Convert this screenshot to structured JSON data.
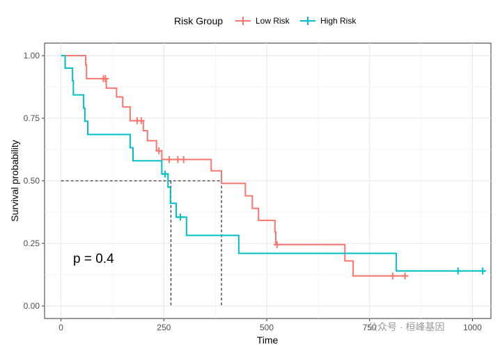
{
  "chart_data": {
    "type": "line",
    "subtype": "kaplan-meier survival curve",
    "xlabel": "Time",
    "ylabel": "Survival probability",
    "xlim": [
      -40,
      1045
    ],
    "ylim": [
      -0.05,
      1.05
    ],
    "x_ticks": [
      0,
      250,
      500,
      750,
      1000
    ],
    "x_tick_labels": [
      "0",
      "250",
      "500",
      "750",
      "1000"
    ],
    "y_ticks": [
      0,
      0.25,
      0.5,
      0.75,
      1.0
    ],
    "y_tick_labels": [
      "0.00",
      "0.25",
      "0.50",
      "0.75",
      "1.00"
    ],
    "grid": true,
    "legend": {
      "title": "Risk Group",
      "position": "top",
      "entries": [
        {
          "label": "Low Risk",
          "color": "#F8766D"
        },
        {
          "label": "High Risk",
          "color": "#00BFC4"
        }
      ]
    },
    "annotation": "p = 0.4",
    "median_survival": {
      "y": 0.5,
      "High Risk": 267,
      "Low Risk": 390
    },
    "series": [
      {
        "name": "Low Risk",
        "color": "#F8766D",
        "steps": [
          [
            0,
            1.0
          ],
          [
            60,
            0.963
          ],
          [
            62,
            0.908
          ],
          [
            110,
            0.87
          ],
          [
            135,
            0.835
          ],
          [
            150,
            0.795
          ],
          [
            168,
            0.74
          ],
          [
            200,
            0.7
          ],
          [
            210,
            0.66
          ],
          [
            232,
            0.62
          ],
          [
            245,
            0.585
          ],
          [
            365,
            0.54
          ],
          [
            390,
            0.49
          ],
          [
            448,
            0.44
          ],
          [
            465,
            0.39
          ],
          [
            480,
            0.342
          ],
          [
            520,
            0.295
          ],
          [
            522,
            0.245
          ],
          [
            690,
            0.18
          ],
          [
            710,
            0.12
          ],
          [
            840,
            0.12
          ]
        ],
        "censor": [
          [
            103,
            0.908
          ],
          [
            108,
            0.908
          ],
          [
            185,
            0.74
          ],
          [
            195,
            0.74
          ],
          [
            238,
            0.62
          ],
          [
            263,
            0.585
          ],
          [
            284,
            0.585
          ],
          [
            298,
            0.585
          ],
          [
            525,
            0.245
          ],
          [
            806,
            0.12
          ],
          [
            836,
            0.12
          ]
        ]
      },
      {
        "name": "High Risk",
        "color": "#00BFC4",
        "steps": [
          [
            0,
            1.0
          ],
          [
            10,
            0.95
          ],
          [
            28,
            0.9
          ],
          [
            30,
            0.843
          ],
          [
            55,
            0.79
          ],
          [
            58,
            0.738
          ],
          [
            65,
            0.685
          ],
          [
            168,
            0.632
          ],
          [
            175,
            0.58
          ],
          [
            245,
            0.527
          ],
          [
            260,
            0.475
          ],
          [
            266,
            0.41
          ],
          [
            280,
            0.355
          ],
          [
            305,
            0.282
          ],
          [
            432,
            0.21
          ],
          [
            815,
            0.14
          ],
          [
            1030,
            0.14
          ]
        ],
        "censor": [
          [
            253,
            0.527
          ],
          [
            290,
            0.355
          ],
          [
            965,
            0.14
          ],
          [
            1025,
            0.14
          ]
        ]
      }
    ]
  },
  "watermark": "公众号 · 桓峰基因"
}
